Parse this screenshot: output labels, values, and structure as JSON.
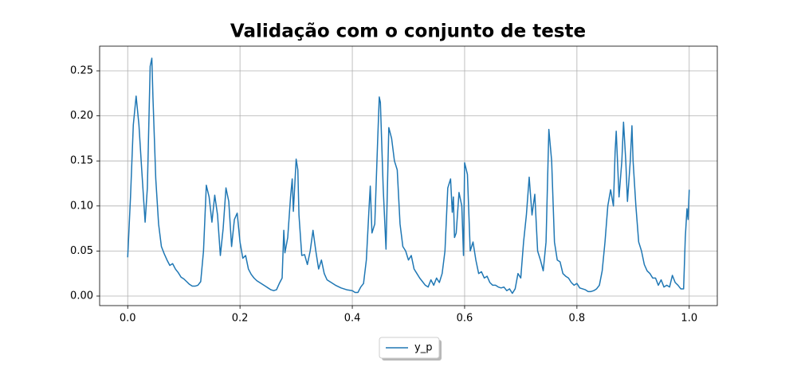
{
  "chart_data": {
    "type": "line",
    "title": "Validação com o conjunto de teste",
    "x": [
      0,
      0.005,
      0.01,
      0.015,
      0.02,
      0.025,
      0.031,
      0.035,
      0.04,
      0.043,
      0.045,
      0.05,
      0.055,
      0.06,
      0.065,
      0.07,
      0.075,
      0.08,
      0.085,
      0.09,
      0.095,
      0.1,
      0.105,
      0.11,
      0.115,
      0.12,
      0.125,
      0.13,
      0.135,
      0.14,
      0.145,
      0.15,
      0.155,
      0.16,
      0.165,
      0.17,
      0.175,
      0.18,
      0.185,
      0.19,
      0.195,
      0.2,
      0.205,
      0.21,
      0.215,
      0.22,
      0.225,
      0.23,
      0.235,
      0.24,
      0.245,
      0.25,
      0.255,
      0.26,
      0.265,
      0.27,
      0.275,
      0.278,
      0.28,
      0.285,
      0.29,
      0.293,
      0.295,
      0.3,
      0.303,
      0.305,
      0.31,
      0.315,
      0.32,
      0.325,
      0.33,
      0.335,
      0.34,
      0.345,
      0.35,
      0.355,
      0.36,
      0.37,
      0.38,
      0.39,
      0.4,
      0.405,
      0.41,
      0.415,
      0.42,
      0.425,
      0.43,
      0.432,
      0.435,
      0.44,
      0.445,
      0.448,
      0.45,
      0.455,
      0.46,
      0.465,
      0.47,
      0.475,
      0.48,
      0.485,
      0.49,
      0.495,
      0.5,
      0.505,
      0.51,
      0.515,
      0.52,
      0.525,
      0.53,
      0.535,
      0.54,
      0.545,
      0.55,
      0.555,
      0.56,
      0.565,
      0.57,
      0.575,
      0.578,
      0.58,
      0.582,
      0.585,
      0.59,
      0.595,
      0.598,
      0.6,
      0.605,
      0.61,
      0.615,
      0.62,
      0.625,
      0.63,
      0.635,
      0.64,
      0.645,
      0.65,
      0.655,
      0.66,
      0.665,
      0.67,
      0.675,
      0.68,
      0.685,
      0.69,
      0.695,
      0.7,
      0.705,
      0.71,
      0.715,
      0.72,
      0.725,
      0.73,
      0.735,
      0.74,
      0.745,
      0.75,
      0.755,
      0.76,
      0.765,
      0.77,
      0.775,
      0.78,
      0.785,
      0.79,
      0.795,
      0.8,
      0.805,
      0.81,
      0.815,
      0.82,
      0.825,
      0.83,
      0.835,
      0.84,
      0.845,
      0.85,
      0.855,
      0.86,
      0.865,
      0.868,
      0.87,
      0.875,
      0.88,
      0.883,
      0.887,
      0.89,
      0.895,
      0.898,
      0.9,
      0.905,
      0.91,
      0.915,
      0.92,
      0.925,
      0.93,
      0.935,
      0.94,
      0.945,
      0.95,
      0.955,
      0.96,
      0.965,
      0.97,
      0.975,
      0.98,
      0.985,
      0.99,
      0.993,
      0.996,
      0.998,
      1.0
    ],
    "series": [
      {
        "name": "y_p",
        "color": "#1f77b4",
        "values": [
          0.043,
          0.11,
          0.19,
          0.222,
          0.19,
          0.14,
          0.082,
          0.12,
          0.255,
          0.264,
          0.22,
          0.13,
          0.08,
          0.055,
          0.047,
          0.04,
          0.034,
          0.036,
          0.03,
          0.026,
          0.021,
          0.019,
          0.016,
          0.013,
          0.011,
          0.011,
          0.012,
          0.016,
          0.05,
          0.123,
          0.11,
          0.082,
          0.112,
          0.09,
          0.045,
          0.075,
          0.12,
          0.105,
          0.055,
          0.085,
          0.092,
          0.06,
          0.042,
          0.045,
          0.03,
          0.024,
          0.02,
          0.017,
          0.015,
          0.013,
          0.011,
          0.009,
          0.007,
          0.006,
          0.007,
          0.014,
          0.02,
          0.073,
          0.048,
          0.065,
          0.11,
          0.13,
          0.094,
          0.152,
          0.14,
          0.09,
          0.045,
          0.046,
          0.035,
          0.05,
          0.073,
          0.05,
          0.03,
          0.04,
          0.025,
          0.018,
          0.016,
          0.012,
          0.009,
          0.007,
          0.006,
          0.004,
          0.004,
          0.01,
          0.014,
          0.04,
          0.1,
          0.122,
          0.07,
          0.08,
          0.17,
          0.221,
          0.215,
          0.12,
          0.052,
          0.187,
          0.175,
          0.15,
          0.14,
          0.08,
          0.055,
          0.05,
          0.04,
          0.045,
          0.03,
          0.025,
          0.02,
          0.016,
          0.012,
          0.01,
          0.018,
          0.012,
          0.02,
          0.015,
          0.025,
          0.05,
          0.12,
          0.13,
          0.093,
          0.11,
          0.065,
          0.07,
          0.115,
          0.1,
          0.045,
          0.148,
          0.135,
          0.05,
          0.06,
          0.04,
          0.025,
          0.027,
          0.02,
          0.022,
          0.015,
          0.012,
          0.012,
          0.01,
          0.009,
          0.01,
          0.006,
          0.008,
          0.003,
          0.008,
          0.025,
          0.02,
          0.06,
          0.09,
          0.132,
          0.09,
          0.113,
          0.05,
          0.04,
          0.028,
          0.06,
          0.185,
          0.15,
          0.06,
          0.04,
          0.038,
          0.025,
          0.022,
          0.02,
          0.015,
          0.012,
          0.014,
          0.009,
          0.008,
          0.007,
          0.005,
          0.005,
          0.006,
          0.008,
          0.012,
          0.028,
          0.06,
          0.1,
          0.118,
          0.1,
          0.16,
          0.183,
          0.11,
          0.15,
          0.193,
          0.15,
          0.105,
          0.15,
          0.189,
          0.15,
          0.1,
          0.06,
          0.05,
          0.035,
          0.028,
          0.025,
          0.02,
          0.02,
          0.012,
          0.018,
          0.01,
          0.012,
          0.01,
          0.023,
          0.015,
          0.012,
          0.008,
          0.008,
          0.065,
          0.097,
          0.085,
          0.118
        ]
      }
    ],
    "xlim": [
      -0.05,
      1.05
    ],
    "xticks": [
      {
        "value": 0,
        "label": "0.0"
      },
      {
        "value": 0.2,
        "label": "0.2"
      },
      {
        "value": 0.4,
        "label": "0.4"
      },
      {
        "value": 0.6,
        "label": "0.6"
      },
      {
        "value": 0.8,
        "label": "0.8"
      },
      {
        "value": 1,
        "label": "1.0"
      }
    ],
    "ylim": [
      -0.0106,
      0.2774
    ],
    "yticks": [
      {
        "value": 0,
        "label": "0.00"
      },
      {
        "value": 0.05,
        "label": "0.05"
      },
      {
        "value": 0.1,
        "label": "0.10"
      },
      {
        "value": 0.15,
        "label": "0.15"
      },
      {
        "value": 0.2,
        "label": "0.20"
      },
      {
        "value": 0.25,
        "label": "0.25"
      }
    ],
    "grid": true,
    "legend": "below"
  }
}
